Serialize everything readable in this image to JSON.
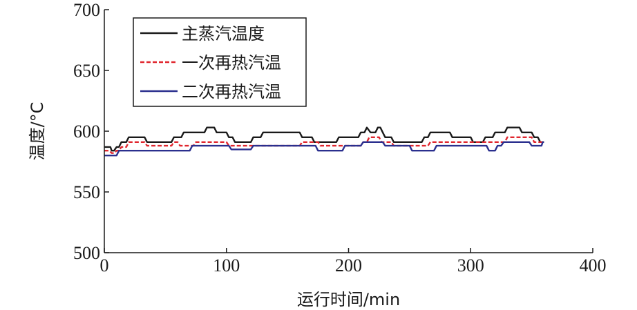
{
  "chart_data": {
    "type": "line",
    "xlabel": "运行时间/min",
    "ylabel": "温度/°C",
    "xlim": [
      0,
      400
    ],
    "ylim": [
      500,
      700
    ],
    "x_ticks": [
      0,
      100,
      200,
      300,
      400
    ],
    "y_ticks": [
      500,
      550,
      600,
      650,
      700
    ],
    "grid": false,
    "legend_position": "top-left",
    "series": [
      {
        "name": "主蒸汽温度",
        "color": "#1a1a1a",
        "dash": "solid",
        "points": [
          [
            0,
            587
          ],
          [
            5,
            587
          ],
          [
            6,
            584
          ],
          [
            8,
            584
          ],
          [
            10,
            587
          ],
          [
            12,
            587
          ],
          [
            14,
            591
          ],
          [
            18,
            591
          ],
          [
            20,
            595
          ],
          [
            33,
            595
          ],
          [
            35,
            591
          ],
          [
            55,
            591
          ],
          [
            57,
            595
          ],
          [
            63,
            595
          ],
          [
            65,
            599
          ],
          [
            82,
            599
          ],
          [
            84,
            603
          ],
          [
            90,
            603
          ],
          [
            92,
            599
          ],
          [
            100,
            599
          ],
          [
            102,
            595
          ],
          [
            105,
            595
          ],
          [
            107,
            591
          ],
          [
            120,
            591
          ],
          [
            122,
            595
          ],
          [
            128,
            595
          ],
          [
            130,
            599
          ],
          [
            160,
            599
          ],
          [
            162,
            595
          ],
          [
            170,
            595
          ],
          [
            172,
            591
          ],
          [
            190,
            591
          ],
          [
            192,
            595
          ],
          [
            208,
            595
          ],
          [
            210,
            599
          ],
          [
            213,
            599
          ],
          [
            215,
            603
          ],
          [
            218,
            599
          ],
          [
            222,
            599
          ],
          [
            224,
            603
          ],
          [
            226,
            603
          ],
          [
            228,
            599
          ],
          [
            230,
            595
          ],
          [
            235,
            595
          ],
          [
            237,
            591
          ],
          [
            260,
            591
          ],
          [
            262,
            595
          ],
          [
            265,
            595
          ],
          [
            267,
            599
          ],
          [
            283,
            599
          ],
          [
            285,
            595
          ],
          [
            300,
            595
          ],
          [
            302,
            591
          ],
          [
            310,
            591
          ],
          [
            312,
            595
          ],
          [
            318,
            595
          ],
          [
            320,
            599
          ],
          [
            328,
            599
          ],
          [
            330,
            603
          ],
          [
            340,
            603
          ],
          [
            342,
            599
          ],
          [
            350,
            599
          ],
          [
            352,
            595
          ],
          [
            355,
            595
          ],
          [
            357,
            591
          ],
          [
            360,
            591
          ]
        ]
      },
      {
        "name": "一次再热汽温",
        "color": "#e0262e",
        "dash": "dashed",
        "points": [
          [
            0,
            584
          ],
          [
            4,
            584
          ],
          [
            6,
            582
          ],
          [
            8,
            582
          ],
          [
            10,
            584
          ],
          [
            12,
            584
          ],
          [
            14,
            587
          ],
          [
            18,
            587
          ],
          [
            20,
            591
          ],
          [
            33,
            591
          ],
          [
            35,
            588
          ],
          [
            55,
            588
          ],
          [
            57,
            591
          ],
          [
            60,
            591
          ],
          [
            62,
            588
          ],
          [
            73,
            588
          ],
          [
            75,
            591
          ],
          [
            100,
            591
          ],
          [
            102,
            588
          ],
          [
            160,
            588
          ],
          [
            162,
            591
          ],
          [
            175,
            591
          ],
          [
            177,
            588
          ],
          [
            210,
            588
          ],
          [
            212,
            591
          ],
          [
            215,
            591
          ],
          [
            217,
            595
          ],
          [
            225,
            595
          ],
          [
            227,
            591
          ],
          [
            235,
            591
          ],
          [
            237,
            588
          ],
          [
            265,
            588
          ],
          [
            267,
            591
          ],
          [
            310,
            591
          ],
          [
            312,
            591
          ],
          [
            328,
            591
          ],
          [
            330,
            595
          ],
          [
            350,
            595
          ],
          [
            352,
            591
          ],
          [
            360,
            591
          ]
        ]
      },
      {
        "name": "二次再热汽温",
        "color": "#2a2f8e",
        "dash": "solid",
        "points": [
          [
            0,
            580
          ],
          [
            10,
            580
          ],
          [
            12,
            584
          ],
          [
            70,
            584
          ],
          [
            72,
            588
          ],
          [
            102,
            588
          ],
          [
            104,
            585
          ],
          [
            120,
            585
          ],
          [
            122,
            588
          ],
          [
            173,
            588
          ],
          [
            175,
            584
          ],
          [
            195,
            584
          ],
          [
            197,
            588
          ],
          [
            210,
            588
          ],
          [
            212,
            591
          ],
          [
            228,
            591
          ],
          [
            230,
            588
          ],
          [
            250,
            588
          ],
          [
            252,
            584
          ],
          [
            270,
            584
          ],
          [
            272,
            588
          ],
          [
            298,
            588
          ],
          [
            300,
            588
          ],
          [
            313,
            588
          ],
          [
            315,
            584
          ],
          [
            320,
            584
          ],
          [
            322,
            588
          ],
          [
            325,
            588
          ],
          [
            327,
            591
          ],
          [
            348,
            591
          ],
          [
            350,
            588
          ],
          [
            358,
            588
          ],
          [
            359,
            591
          ],
          [
            360,
            591
          ]
        ]
      }
    ]
  }
}
